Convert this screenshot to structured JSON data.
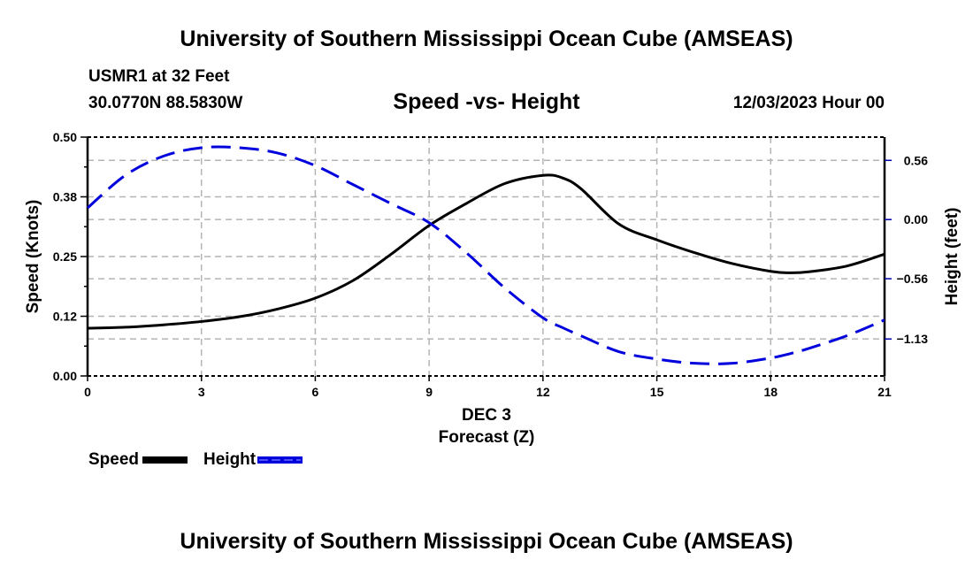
{
  "header": {
    "main_title": "University of Southern Mississippi Ocean Cube (AMSEAS)",
    "station": "USMR1 at 32 Feet",
    "coords": "30.0770N  88.5830W",
    "subtitle": "Speed -vs- Height",
    "datetime": "12/03/2023 Hour 00"
  },
  "footer": {
    "title": "University of Southern Mississippi Ocean Cube (AMSEAS)"
  },
  "chart_data": {
    "type": "line",
    "title": "Speed -vs- Height",
    "xlabel": "Forecast (Z)",
    "xlabel_date": "DEC 3",
    "ylabel": "Speed (Knots)",
    "y2label": "Height (feet)",
    "xlim": [
      0,
      21
    ],
    "ylim": [
      0,
      0.5
    ],
    "y2lim": [
      -1.48,
      0.78
    ],
    "x_ticks": [
      0,
      3,
      6,
      9,
      12,
      15,
      18,
      21
    ],
    "x_tick_labels": [
      "0",
      "3",
      "6",
      "9",
      "12",
      "15",
      "18",
      "21"
    ],
    "y_ticks": [
      0.0,
      0.125,
      0.25,
      0.375,
      0.5
    ],
    "y_tick_labels": [
      "0.00",
      "0.12",
      "0.25",
      "0.38",
      "0.50"
    ],
    "y2_ticks": [
      0.56,
      0.0,
      -0.56,
      -1.13
    ],
    "y2_tick_labels": [
      "0.56",
      "0.00",
      "−0.56",
      "−1.13"
    ],
    "grid": true,
    "legend_placement": "bottom-left",
    "x": [
      0,
      1,
      2,
      3,
      4,
      5,
      6,
      7,
      8,
      9,
      10,
      11,
      12,
      12.5,
      13,
      14,
      15,
      16,
      17,
      18,
      18.5,
      19,
      20,
      21
    ],
    "series": [
      {
        "name": "Speed",
        "axis": "left",
        "color": "#000000",
        "style": "solid",
        "values": [
          0.1,
          0.102,
          0.107,
          0.114,
          0.124,
          0.14,
          0.163,
          0.2,
          0.255,
          0.315,
          0.362,
          0.403,
          0.42,
          0.415,
          0.392,
          0.318,
          0.285,
          0.258,
          0.235,
          0.219,
          0.216,
          0.218,
          0.23,
          0.255
        ]
      },
      {
        "name": "Height",
        "axis": "right",
        "color": "#0000dd",
        "style": "dashed",
        "values": [
          0.11,
          0.42,
          0.6,
          0.68,
          0.68,
          0.63,
          0.51,
          0.33,
          0.15,
          -0.03,
          -0.32,
          -0.65,
          -0.93,
          -1.02,
          -1.1,
          -1.25,
          -1.32,
          -1.36,
          -1.36,
          -1.31,
          -1.27,
          -1.22,
          -1.1,
          -0.95
        ]
      }
    ]
  },
  "legend": [
    {
      "label": "Speed",
      "color": "#000000",
      "style": "solid"
    },
    {
      "label": "Height",
      "color": "#0000dd",
      "style": "dashed"
    }
  ]
}
